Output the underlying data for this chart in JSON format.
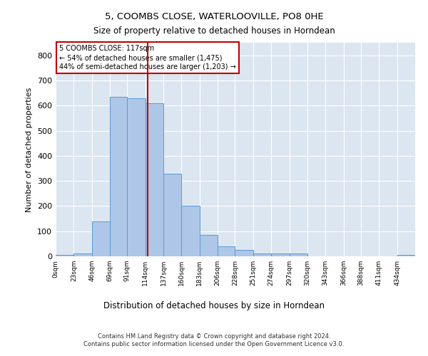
{
  "title1": "5, COOMBS CLOSE, WATERLOOVILLE, PO8 0HE",
  "title2": "Size of property relative to detached houses in Horndean",
  "xlabel": "Distribution of detached houses by size in Horndean",
  "ylabel": "Number of detached properties",
  "footer1": "Contains HM Land Registry data © Crown copyright and database right 2024.",
  "footer2": "Contains public sector information licensed under the Open Government Licence v3.0.",
  "annotation_line1": "5 COOMBS CLOSE: 117sqm",
  "annotation_line2": "← 54% of detached houses are smaller (1,475)",
  "annotation_line3": "44% of semi-detached houses are larger (1,203) →",
  "property_size": 117,
  "bin_edges": [
    0,
    23,
    46,
    69,
    91,
    114,
    137,
    160,
    183,
    206,
    228,
    251,
    274,
    297,
    320,
    343,
    366,
    388,
    411,
    434,
    457
  ],
  "bar_heights": [
    5,
    10,
    140,
    635,
    630,
    610,
    330,
    200,
    85,
    40,
    25,
    12,
    12,
    10,
    0,
    0,
    0,
    0,
    0,
    5
  ],
  "bar_color": "#aec6e8",
  "bar_edge_color": "#5b9bd5",
  "marker_color": "#c00000",
  "bg_color": "#dce6f1",
  "ylim": [
    0,
    850
  ],
  "yticks": [
    0,
    100,
    200,
    300,
    400,
    500,
    600,
    700,
    800
  ]
}
